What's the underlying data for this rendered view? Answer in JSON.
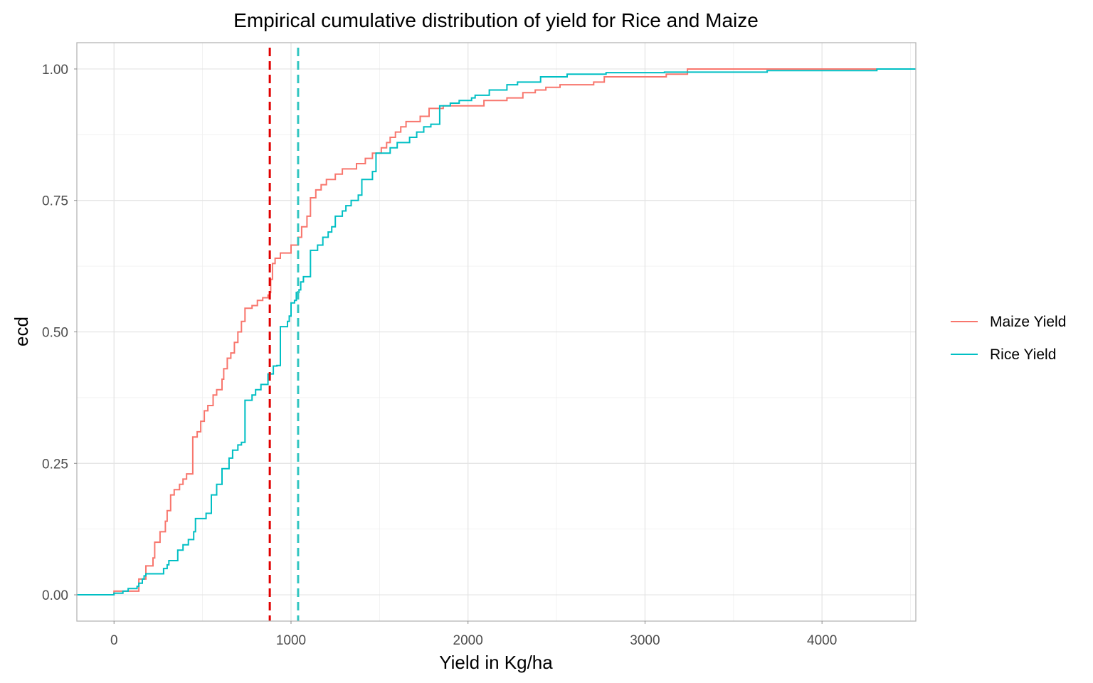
{
  "chart_data": {
    "type": "line",
    "subtype": "step-ecdf",
    "title": "Empirical cumulative distribution of yield for Rice and Maize",
    "xlabel": "Yield in Kg/ha",
    "ylabel": "ecd",
    "xlim": [
      -210,
      4530
    ],
    "ylim": [
      -0.05,
      1.05
    ],
    "x_ticks": [
      0,
      1000,
      2000,
      3000,
      4000
    ],
    "x_tick_labels": [
      "0",
      "1000",
      "2000",
      "3000",
      "4000"
    ],
    "y_ticks": [
      0,
      0.25,
      0.5,
      0.75,
      1
    ],
    "y_tick_labels": [
      "0.00",
      "0.25",
      "0.50",
      "0.75",
      "1.00"
    ],
    "grid": true,
    "legend_position": "right",
    "series": [
      {
        "name": "Maize Yield",
        "color": "#F8766D",
        "points": [
          [
            -210,
            0
          ],
          [
            0,
            0
          ],
          [
            0,
            0.007
          ],
          [
            140,
            0.007
          ],
          [
            140,
            0.03
          ],
          [
            180,
            0.055
          ],
          [
            220,
            0.07
          ],
          [
            230,
            0.1
          ],
          [
            260,
            0.12
          ],
          [
            290,
            0.14
          ],
          [
            300,
            0.16
          ],
          [
            320,
            0.19
          ],
          [
            340,
            0.2
          ],
          [
            370,
            0.21
          ],
          [
            390,
            0.22
          ],
          [
            410,
            0.23
          ],
          [
            445,
            0.235
          ],
          [
            445,
            0.3
          ],
          [
            470,
            0.31
          ],
          [
            490,
            0.33
          ],
          [
            510,
            0.35
          ],
          [
            530,
            0.36
          ],
          [
            560,
            0.38
          ],
          [
            580,
            0.39
          ],
          [
            610,
            0.41
          ],
          [
            620,
            0.43
          ],
          [
            640,
            0.45
          ],
          [
            660,
            0.46
          ],
          [
            680,
            0.48
          ],
          [
            700,
            0.5
          ],
          [
            720,
            0.52
          ],
          [
            740,
            0.545
          ],
          [
            780,
            0.55
          ],
          [
            810,
            0.56
          ],
          [
            840,
            0.565
          ],
          [
            870,
            0.57
          ],
          [
            880,
            0.575
          ],
          [
            885,
            0.6
          ],
          [
            895,
            0.63
          ],
          [
            910,
            0.64
          ],
          [
            940,
            0.65
          ],
          [
            1000,
            0.665
          ],
          [
            1040,
            0.68
          ],
          [
            1060,
            0.7
          ],
          [
            1090,
            0.72
          ],
          [
            1110,
            0.755
          ],
          [
            1140,
            0.77
          ],
          [
            1170,
            0.78
          ],
          [
            1200,
            0.79
          ],
          [
            1250,
            0.8
          ],
          [
            1290,
            0.81
          ],
          [
            1370,
            0.82
          ],
          [
            1420,
            0.83
          ],
          [
            1460,
            0.84
          ],
          [
            1510,
            0.85
          ],
          [
            1540,
            0.86
          ],
          [
            1560,
            0.87
          ],
          [
            1590,
            0.88
          ],
          [
            1620,
            0.89
          ],
          [
            1650,
            0.9
          ],
          [
            1730,
            0.91
          ],
          [
            1780,
            0.925
          ],
          [
            1860,
            0.93
          ],
          [
            2090,
            0.94
          ],
          [
            2220,
            0.945
          ],
          [
            2310,
            0.955
          ],
          [
            2380,
            0.96
          ],
          [
            2440,
            0.965
          ],
          [
            2520,
            0.97
          ],
          [
            2710,
            0.975
          ],
          [
            2770,
            0.985
          ],
          [
            3120,
            0.99
          ],
          [
            3240,
            1.0
          ],
          [
            4320,
            1.0
          ]
        ]
      },
      {
        "name": "Rice Yield",
        "color": "#00BFC4",
        "points": [
          [
            -210,
            0
          ],
          [
            0,
            0
          ],
          [
            0,
            0.003
          ],
          [
            50,
            0.007
          ],
          [
            80,
            0.012
          ],
          [
            130,
            0.016
          ],
          [
            140,
            0.022
          ],
          [
            160,
            0.03
          ],
          [
            170,
            0.036
          ],
          [
            180,
            0.04
          ],
          [
            280,
            0.05
          ],
          [
            300,
            0.057
          ],
          [
            310,
            0.065
          ],
          [
            360,
            0.085
          ],
          [
            390,
            0.095
          ],
          [
            420,
            0.105
          ],
          [
            450,
            0.12
          ],
          [
            460,
            0.145
          ],
          [
            520,
            0.155
          ],
          [
            550,
            0.19
          ],
          [
            580,
            0.21
          ],
          [
            610,
            0.24
          ],
          [
            650,
            0.26
          ],
          [
            670,
            0.275
          ],
          [
            700,
            0.285
          ],
          [
            720,
            0.29
          ],
          [
            740,
            0.37
          ],
          [
            780,
            0.38
          ],
          [
            800,
            0.39
          ],
          [
            830,
            0.4
          ],
          [
            870,
            0.42
          ],
          [
            900,
            0.435
          ],
          [
            920,
            0.436
          ],
          [
            940,
            0.51
          ],
          [
            980,
            0.52
          ],
          [
            990,
            0.53
          ],
          [
            1000,
            0.555
          ],
          [
            1020,
            0.56
          ],
          [
            1030,
            0.575
          ],
          [
            1045,
            0.58
          ],
          [
            1055,
            0.595
          ],
          [
            1070,
            0.605
          ],
          [
            1100,
            0.605
          ],
          [
            1110,
            0.655
          ],
          [
            1150,
            0.665
          ],
          [
            1180,
            0.68
          ],
          [
            1210,
            0.69
          ],
          [
            1230,
            0.7
          ],
          [
            1250,
            0.72
          ],
          [
            1290,
            0.73
          ],
          [
            1310,
            0.74
          ],
          [
            1340,
            0.75
          ],
          [
            1380,
            0.76
          ],
          [
            1400,
            0.79
          ],
          [
            1460,
            0.805
          ],
          [
            1480,
            0.84
          ],
          [
            1560,
            0.85
          ],
          [
            1600,
            0.86
          ],
          [
            1670,
            0.87
          ],
          [
            1710,
            0.88
          ],
          [
            1750,
            0.89
          ],
          [
            1790,
            0.895
          ],
          [
            1840,
            0.93
          ],
          [
            1900,
            0.935
          ],
          [
            1950,
            0.94
          ],
          [
            2020,
            0.945
          ],
          [
            2040,
            0.95
          ],
          [
            2120,
            0.96
          ],
          [
            2220,
            0.97
          ],
          [
            2280,
            0.975
          ],
          [
            2410,
            0.985
          ],
          [
            2560,
            0.99
          ],
          [
            2780,
            0.993
          ],
          [
            3110,
            0.994
          ],
          [
            3690,
            0.997
          ],
          [
            4310,
            1.0
          ],
          [
            4530,
            1.0
          ]
        ]
      }
    ],
    "vlines": [
      {
        "x": 880,
        "color": "#E00000",
        "dash": true
      },
      {
        "x": 1040,
        "color": "#33C6C1",
        "dash": true
      }
    ]
  }
}
